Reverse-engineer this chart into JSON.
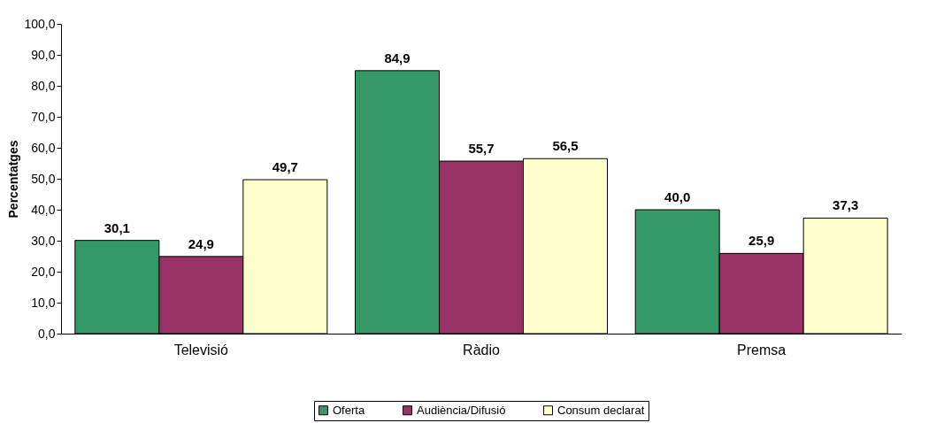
{
  "chart_data": {
    "type": "bar",
    "ylabel": "Percentatges",
    "categories": [
      "Televisió",
      "Ràdio",
      "Premsa"
    ],
    "series": [
      {
        "name": "Oferta",
        "color": "#339966",
        "values": [
          30.1,
          84.9,
          40.0
        ],
        "value_labels": [
          "30,1",
          "84,9",
          "40,0"
        ]
      },
      {
        "name": "Audiència/Difusió",
        "color": "#993366",
        "values": [
          24.9,
          55.7,
          25.9
        ],
        "value_labels": [
          "24,9",
          "55,7",
          "25,9"
        ]
      },
      {
        "name": "Consum declarat",
        "color": "#ffffcc",
        "values": [
          49.7,
          56.5,
          37.3
        ],
        "value_labels": [
          "49,7",
          "56,5",
          "37,3"
        ]
      }
    ],
    "ylim": [
      0,
      100
    ],
    "yticks": [
      {
        "value": 0,
        "label": "0,0"
      },
      {
        "value": 10,
        "label": "10,0"
      },
      {
        "value": 20,
        "label": "20,0"
      },
      {
        "value": 30,
        "label": "30,0"
      },
      {
        "value": 40,
        "label": "40,0"
      },
      {
        "value": 50,
        "label": "50,0"
      },
      {
        "value": 60,
        "label": "60,0"
      },
      {
        "value": 70,
        "label": "70,0"
      },
      {
        "value": 80,
        "label": "80,0"
      },
      {
        "value": 90,
        "label": "90,0"
      },
      {
        "value": 100,
        "label": "100,0"
      }
    ],
    "grid": false,
    "legend": "bottom"
  }
}
